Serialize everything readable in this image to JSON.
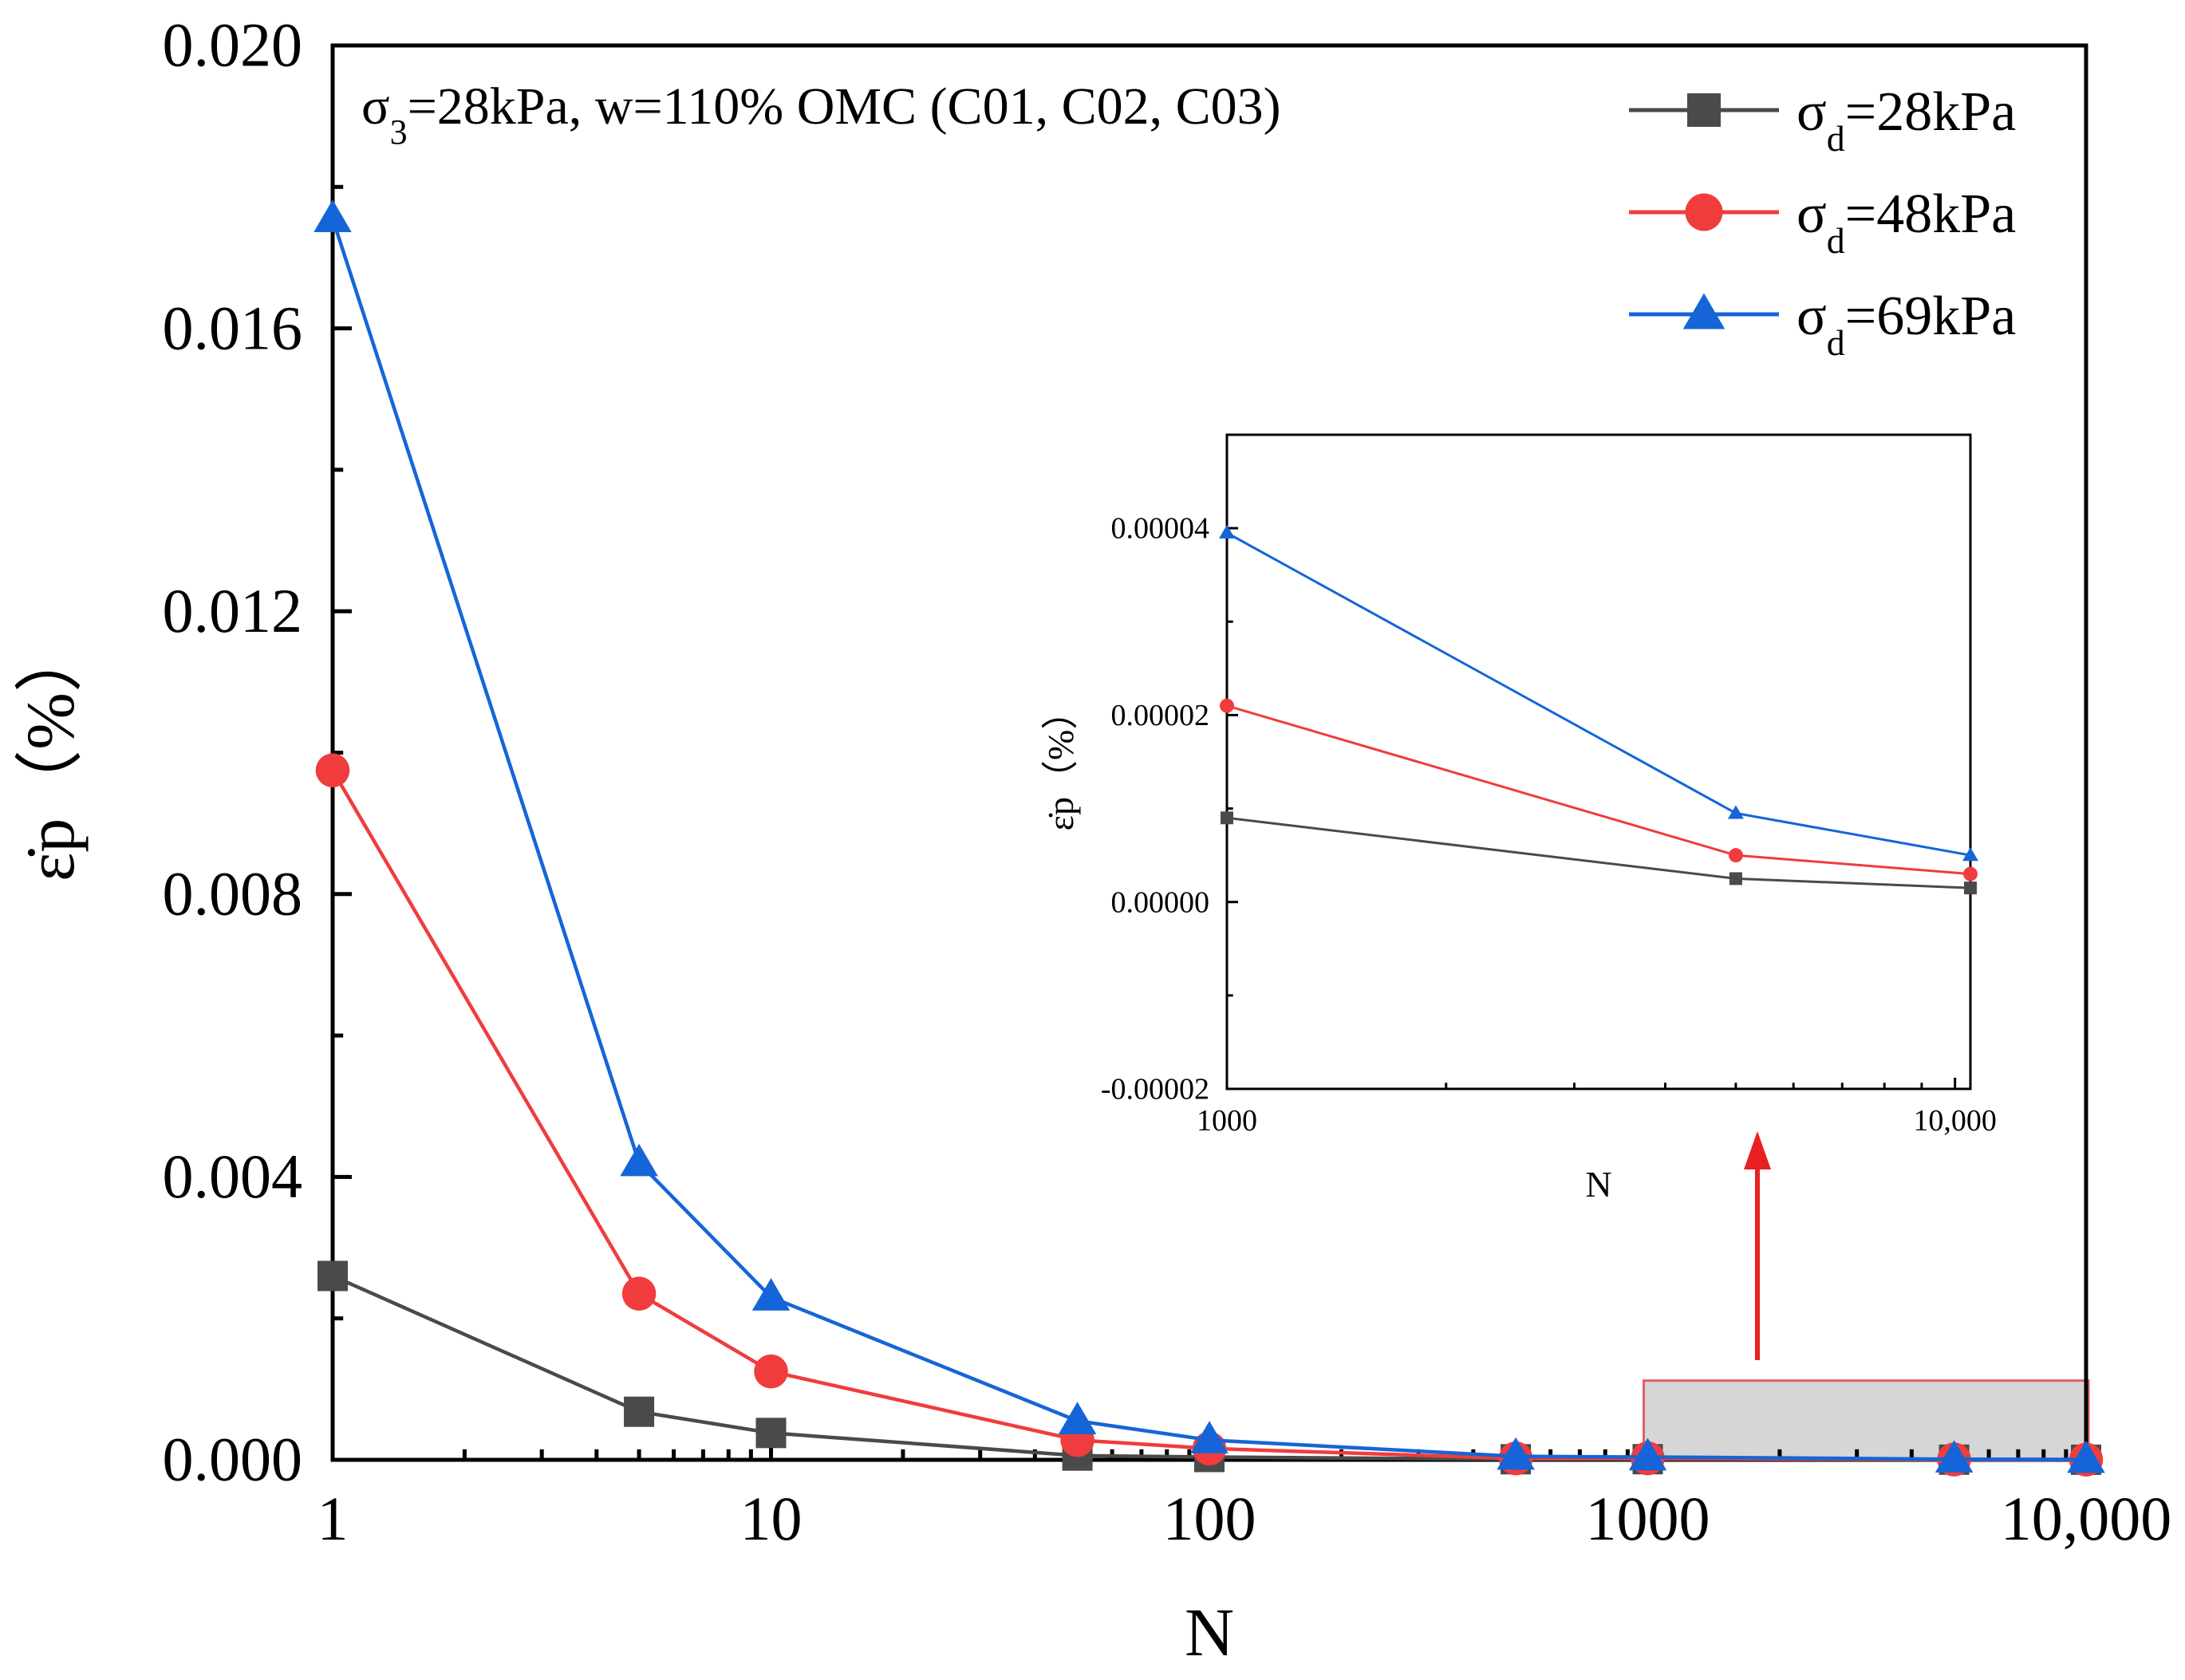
{
  "chart_data": [
    {
      "type": "line",
      "title": "",
      "xlabel": "N",
      "ylabel": "ε̇p（%）",
      "xscale": "log",
      "xlim": [
        1,
        10000
      ],
      "ylim": [
        0,
        0.02
      ],
      "grid": false,
      "legend_position": "top-right",
      "annotation": {
        "sigma3_symbol": "σ",
        "sigma3_sub": "3",
        "text": "=28kPa, w=110% OMC (C01, C02, C03)"
      },
      "x_ticks": [
        1,
        10,
        100,
        1000,
        10000
      ],
      "x_tick_labels": [
        "1",
        "10",
        "100",
        "1000",
        "10,000"
      ],
      "y_ticks": [
        0,
        0.004,
        0.008,
        0.012,
        0.016,
        0.02
      ],
      "y_tick_labels": [
        "0.000",
        "0.004",
        "0.008",
        "0.012",
        "0.016",
        "0.020"
      ],
      "series": [
        {
          "name": "σd=28kPa",
          "symbol": "σ",
          "sub": "d",
          "suffix": "=28kPa",
          "marker": "square",
          "color": "#4a4a4a",
          "x": [
            1,
            5,
            10,
            50,
            100,
            500,
            1000,
            5000,
            10000
          ],
          "y": [
            0.0026,
            0.00068,
            0.00038,
            6e-05,
            4e-05,
            8e-06,
            9e-06,
            2.5e-06,
            1.5e-06
          ]
        },
        {
          "name": "σd=48kPa",
          "symbol": "σ",
          "sub": "d",
          "suffix": "=48kPa",
          "marker": "circle",
          "color": "#f03c3c",
          "x": [
            1,
            5,
            10,
            50,
            100,
            500,
            1000,
            5000,
            10000
          ],
          "y": [
            0.00975,
            0.00235,
            0.00125,
            0.00028,
            0.00016,
            2e-05,
            2.1e-05,
            5e-06,
            3e-06
          ]
        },
        {
          "name": "σd=69kPa",
          "symbol": "σ",
          "sub": "d",
          "suffix": "=69kPa",
          "marker": "triangle",
          "color": "#1565d8",
          "x": [
            1,
            5,
            10,
            50,
            100,
            500,
            1000,
            5000,
            10000
          ],
          "y": [
            0.01755,
            0.0042,
            0.0023,
            0.00055,
            0.00028,
            5e-05,
            4e-05,
            9.5e-06,
            5e-06
          ]
        }
      ],
      "highlight_region": {
        "x_range": [
          1000,
          10000
        ],
        "y_range": [
          0,
          0.00112
        ]
      }
    },
    {
      "type": "line",
      "title": "",
      "xlabel": "N",
      "ylabel": "ε̇p（%）",
      "xscale": "log",
      "xlim": [
        1000,
        10500
      ],
      "ylim": [
        -2e-05,
        5e-05
      ],
      "grid": false,
      "x_ticks": [
        1000,
        10000
      ],
      "x_tick_labels": [
        "1000",
        "10,000"
      ],
      "y_ticks": [
        -2e-05,
        0,
        2e-05,
        4e-05
      ],
      "y_tick_labels": [
        "-0.00002",
        "0.00000",
        "0.00002",
        "0.00004"
      ],
      "series": [
        {
          "name": "σd=28kPa",
          "color": "#4a4a4a",
          "marker": "square",
          "x": [
            1000,
            5000,
            10500
          ],
          "y": [
            9e-06,
            2.5e-06,
            1.5e-06
          ]
        },
        {
          "name": "σd=48kPa",
          "color": "#f03c3c",
          "marker": "circle",
          "x": [
            1000,
            5000,
            10500
          ],
          "y": [
            2.1e-05,
            5e-06,
            3e-06
          ]
        },
        {
          "name": "σd=69kPa",
          "color": "#1565d8",
          "marker": "triangle",
          "x": [
            1000,
            5000,
            10500
          ],
          "y": [
            3.95e-05,
            9.5e-06,
            5e-06
          ]
        }
      ]
    }
  ]
}
